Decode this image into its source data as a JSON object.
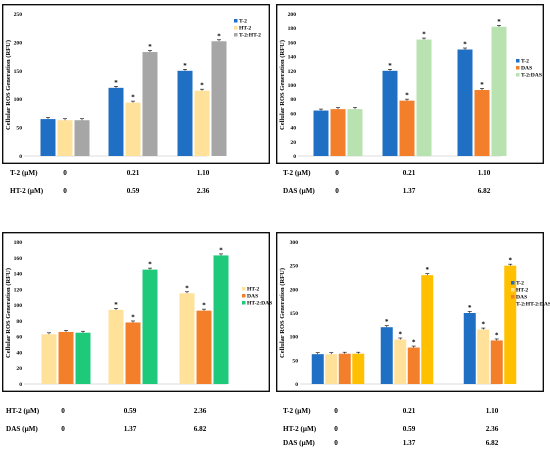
{
  "chart_data": [
    {
      "type": "bar",
      "ylabel": "Cellular ROS Generation (RFU)",
      "ylim": [
        0,
        250
      ],
      "yticks": [
        0,
        50,
        100,
        150,
        200,
        250
      ],
      "legend_position": "top-right",
      "series": [
        {
          "name": "T-2",
          "color": "#1f6fc5",
          "values": [
            65,
            120,
            150
          ],
          "significant": [
            false,
            true,
            true
          ]
        },
        {
          "name": "HT-2",
          "color": "#ffe19a",
          "values": [
            63,
            94,
            115
          ],
          "significant": [
            false,
            true,
            true
          ]
        },
        {
          "name": "T-2:HT-2",
          "color": "#a6a6a6",
          "values": [
            63,
            183,
            202
          ],
          "significant": [
            false,
            true,
            true
          ]
        }
      ],
      "conc_rows": [
        {
          "label": "T-2 (μM)",
          "values": [
            "0",
            "0.21",
            "1.10"
          ]
        },
        {
          "label": "HT-2 (μM)",
          "values": [
            "0",
            "0.59",
            "2.36"
          ]
        }
      ]
    },
    {
      "type": "bar",
      "ylabel": "Cellular ROS Generation (RFU)",
      "ylim": [
        0,
        200
      ],
      "yticks": [
        0,
        20,
        40,
        60,
        80,
        100,
        120,
        140,
        160,
        180,
        200
      ],
      "legend_position": "top-right",
      "series": [
        {
          "name": "T-2",
          "color": "#1f6fc5",
          "values": [
            64,
            120,
            150
          ],
          "significant": [
            false,
            true,
            true
          ]
        },
        {
          "name": "DAS",
          "color": "#f47f2a",
          "values": [
            66,
            78,
            93
          ],
          "significant": [
            false,
            true,
            true
          ]
        },
        {
          "name": "T-2:DAS",
          "color": "#b8e2b0",
          "values": [
            66,
            164,
            182
          ],
          "significant": [
            false,
            true,
            true
          ]
        }
      ],
      "conc_rows": [
        {
          "label": "T-2 (μM)",
          "values": [
            "0",
            "0.21",
            "1.10"
          ]
        },
        {
          "label": "DAS (μM)",
          "values": [
            "0",
            "1.37",
            "6.82"
          ]
        }
      ]
    },
    {
      "type": "bar",
      "ylabel": "Cellular ROS Generation (RFU)",
      "ylim": [
        0,
        180
      ],
      "yticks": [
        0,
        20,
        40,
        60,
        80,
        100,
        120,
        140,
        160,
        180
      ],
      "legend_position": "top-right",
      "series": [
        {
          "name": "HT-2",
          "color": "#ffe19a",
          "values": [
            63,
            94,
            115
          ],
          "significant": [
            false,
            true,
            true
          ]
        },
        {
          "name": "DAS",
          "color": "#f47f2a",
          "values": [
            66,
            78,
            93
          ],
          "significant": [
            false,
            true,
            true
          ]
        },
        {
          "name": "HT-2:DAS",
          "color": "#1ec97a",
          "values": [
            65,
            145,
            163
          ],
          "significant": [
            false,
            true,
            true
          ]
        }
      ],
      "conc_rows": [
        {
          "label": "HT-2 (μM)",
          "values": [
            "0",
            "0.59",
            "2.36"
          ]
        },
        {
          "label": "DAS (μM)",
          "values": [
            "0",
            "1.37",
            "6.82"
          ]
        }
      ]
    },
    {
      "type": "bar",
      "ylabel": "Cellular ROS Generation (RFU)",
      "ylim": [
        0,
        300
      ],
      "yticks": [
        0,
        50,
        100,
        150,
        200,
        250,
        300
      ],
      "legend_position": "top-right",
      "series": [
        {
          "name": "T-2",
          "color": "#1f6fc5",
          "values": [
            63,
            120,
            150
          ],
          "significant": [
            false,
            true,
            true
          ]
        },
        {
          "name": "HT-2",
          "color": "#ffe19a",
          "values": [
            63,
            94,
            115
          ],
          "significant": [
            false,
            true,
            true
          ]
        },
        {
          "name": "DAS",
          "color": "#f47f2a",
          "values": [
            64,
            77,
            92
          ],
          "significant": [
            false,
            true,
            true
          ]
        },
        {
          "name": "T-2:HT-2:DAS",
          "color": "#ffc000",
          "values": [
            64,
            230,
            250
          ],
          "significant": [
            false,
            true,
            true
          ]
        }
      ],
      "conc_rows": [
        {
          "label": "T-2 (μM)",
          "values": [
            "0",
            "0.21",
            "1.10"
          ]
        },
        {
          "label": "HT-2 (μM)",
          "values": [
            "0",
            "0.59",
            "2.36"
          ]
        },
        {
          "label": "DAS (μM)",
          "values": [
            "0",
            "1.37",
            "6.82"
          ]
        }
      ]
    }
  ]
}
